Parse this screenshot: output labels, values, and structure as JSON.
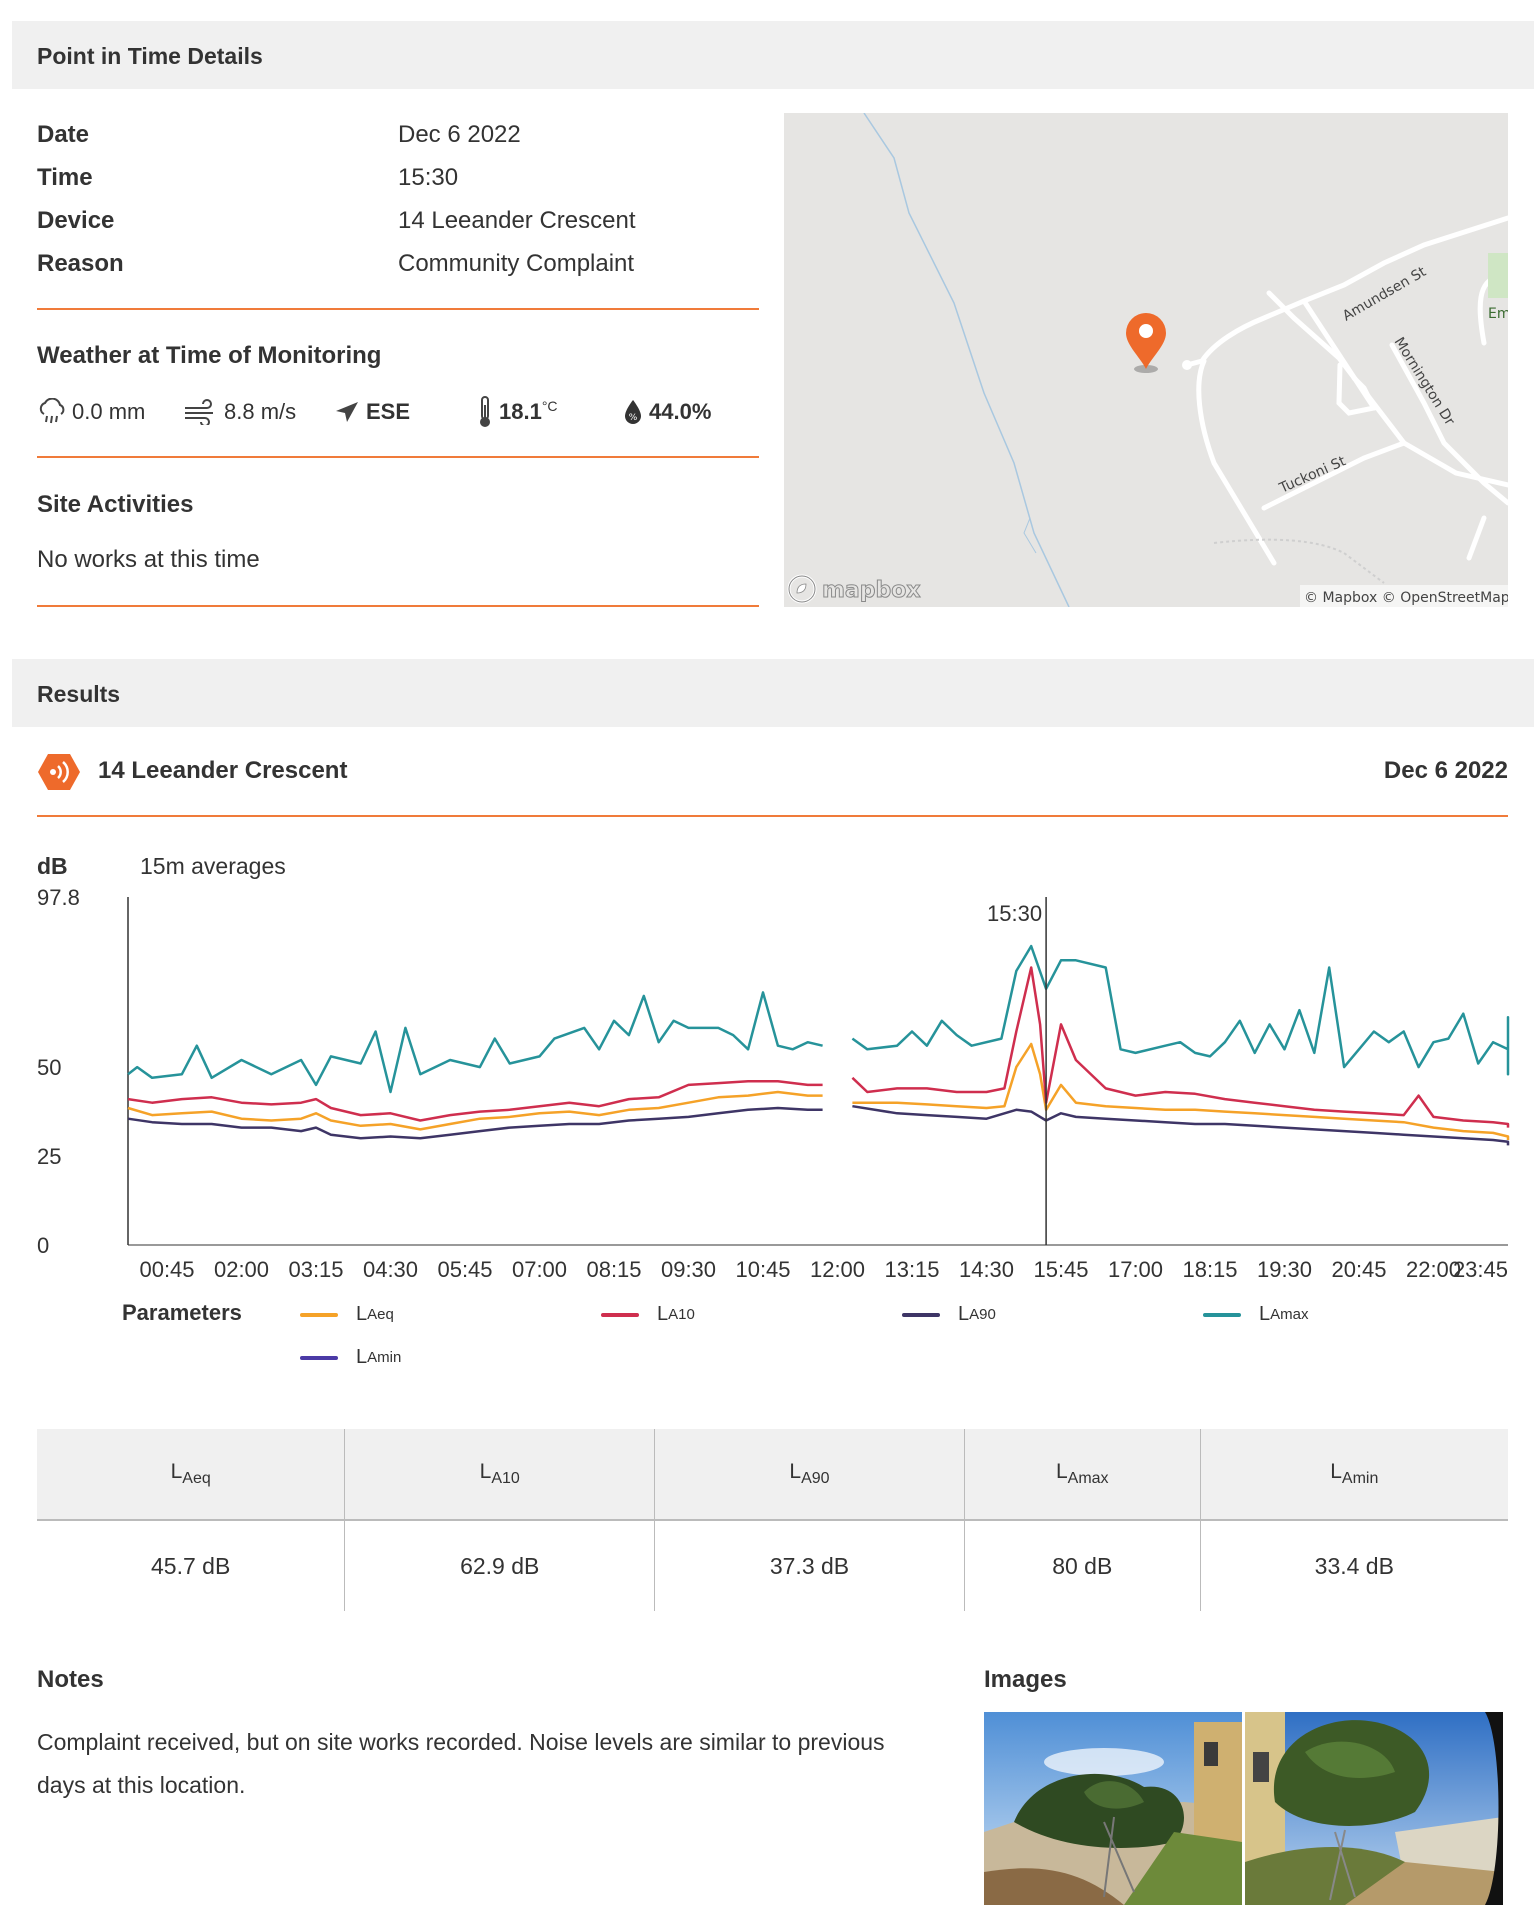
{
  "details": {
    "heading": "Point in Time Details",
    "rows": [
      {
        "label": "Date",
        "value": "Dec 6 2022"
      },
      {
        "label": "Time",
        "value": "15:30"
      },
      {
        "label": "Device",
        "value": "14 Leeander Crescent"
      },
      {
        "label": "Reason",
        "value": "Community Complaint"
      }
    ]
  },
  "weather": {
    "heading": "Weather at Time of Monitoring",
    "rain": "0.0 mm",
    "wind_speed": "8.8 m/s",
    "wind_dir": "ESE",
    "temp": "18.1",
    "temp_unit": "°C",
    "humidity": "44.0%"
  },
  "site": {
    "heading": "Site Activities",
    "text": "No works at this time"
  },
  "map": {
    "streets": [
      "Amundsen St",
      "Mornington Dr",
      "Tuckoni St",
      "Em"
    ],
    "logo": "mapbox",
    "attribution": "© Mapbox © OpenStreetMap"
  },
  "results": {
    "heading": "Results",
    "device": "14 Leeander Crescent",
    "date": "Dec 6 2022"
  },
  "chart_data": {
    "type": "line",
    "ylabel": "dB",
    "subtitle": "15m averages",
    "yticks": [
      0,
      25,
      50,
      97.8
    ],
    "ylim": [
      0,
      97.8
    ],
    "xticks": [
      "00:45",
      "02:00",
      "03:15",
      "04:30",
      "05:45",
      "07:00",
      "08:15",
      "09:30",
      "10:45",
      "12:00",
      "13:15",
      "14:30",
      "15:45",
      "17:00",
      "18:15",
      "19:30",
      "20:45",
      "22:00",
      "23:45"
    ],
    "marker": {
      "label": "15:30",
      "x_hour": 15.5
    },
    "legend_title": "Parameters",
    "gap_hours": [
      11.75,
      12.25
    ],
    "series": [
      {
        "name": "L",
        "sub": "Aeq",
        "color": "#f5a228",
        "points": [
          [
            0,
            38.5
          ],
          [
            0.5,
            36.5
          ],
          [
            1,
            37
          ],
          [
            1.5,
            37.5
          ],
          [
            2,
            35.5
          ],
          [
            2.5,
            35
          ],
          [
            3,
            35.5
          ],
          [
            3.25,
            37
          ],
          [
            3.5,
            35
          ],
          [
            4,
            33.5
          ],
          [
            4.5,
            34
          ],
          [
            5,
            32.5
          ],
          [
            5.5,
            34
          ],
          [
            6,
            35.5
          ],
          [
            6.5,
            36
          ],
          [
            7,
            37
          ],
          [
            7.5,
            37.5
          ],
          [
            8,
            36.5
          ],
          [
            8.5,
            38
          ],
          [
            9,
            38.5
          ],
          [
            9.5,
            40
          ],
          [
            10,
            41.5
          ],
          [
            10.5,
            42
          ],
          [
            11,
            43
          ],
          [
            11.5,
            42
          ],
          [
            11.75,
            42
          ],
          [
            12.25,
            40
          ],
          [
            13,
            40
          ],
          [
            13.5,
            39.5
          ],
          [
            14,
            39
          ],
          [
            14.5,
            38.5
          ],
          [
            14.8,
            39
          ],
          [
            15,
            50
          ],
          [
            15.25,
            56.5
          ],
          [
            15.4,
            48
          ],
          [
            15.5,
            38
          ],
          [
            15.75,
            45
          ],
          [
            16,
            40
          ],
          [
            16.5,
            39
          ],
          [
            17,
            38.5
          ],
          [
            17.5,
            38
          ],
          [
            18,
            38
          ],
          [
            18.5,
            37.5
          ],
          [
            19,
            37
          ],
          [
            19.5,
            36.5
          ],
          [
            20,
            36
          ],
          [
            20.5,
            35.5
          ],
          [
            21,
            35
          ],
          [
            21.5,
            34.5
          ],
          [
            22,
            33
          ],
          [
            22.5,
            32
          ],
          [
            23,
            31.5
          ],
          [
            23.5,
            30.5
          ],
          [
            24,
            29.5
          ]
        ]
      },
      {
        "name": "L",
        "sub": "A10",
        "color": "#cf2e4e",
        "points": [
          [
            0,
            41
          ],
          [
            0.5,
            40
          ],
          [
            1,
            41
          ],
          [
            1.5,
            41.5
          ],
          [
            2,
            40
          ],
          [
            2.5,
            39.5
          ],
          [
            3,
            40
          ],
          [
            3.25,
            41
          ],
          [
            3.5,
            38.5
          ],
          [
            4,
            36.5
          ],
          [
            4.5,
            37
          ],
          [
            5,
            35
          ],
          [
            5.5,
            36.5
          ],
          [
            6,
            37.5
          ],
          [
            6.5,
            38
          ],
          [
            7,
            39
          ],
          [
            7.5,
            40
          ],
          [
            8,
            39
          ],
          [
            8.5,
            41
          ],
          [
            9,
            41.5
          ],
          [
            9.5,
            45
          ],
          [
            10,
            45.5
          ],
          [
            10.5,
            46
          ],
          [
            11,
            46
          ],
          [
            11.5,
            45
          ],
          [
            11.75,
            45
          ],
          [
            12.25,
            47
          ],
          [
            12.5,
            43
          ],
          [
            13,
            44
          ],
          [
            13.5,
            44
          ],
          [
            14,
            43
          ],
          [
            14.5,
            43
          ],
          [
            14.8,
            44
          ],
          [
            15,
            60
          ],
          [
            15.25,
            78
          ],
          [
            15.4,
            62
          ],
          [
            15.5,
            40
          ],
          [
            15.75,
            62
          ],
          [
            16,
            52
          ],
          [
            16.5,
            44
          ],
          [
            17,
            42
          ],
          [
            17.5,
            43
          ],
          [
            18,
            42.5
          ],
          [
            18.5,
            41
          ],
          [
            19,
            40
          ],
          [
            19.5,
            39
          ],
          [
            20,
            38
          ],
          [
            20.5,
            37.5
          ],
          [
            21,
            37
          ],
          [
            21.5,
            36.5
          ],
          [
            21.75,
            42
          ],
          [
            22,
            36
          ],
          [
            22.5,
            35
          ],
          [
            23,
            34.5
          ],
          [
            23.5,
            34
          ],
          [
            24,
            33
          ]
        ]
      },
      {
        "name": "L",
        "sub": "A90",
        "color": "#3e3566",
        "points": [
          [
            0,
            35.5
          ],
          [
            0.5,
            34.5
          ],
          [
            1,
            34
          ],
          [
            1.5,
            34
          ],
          [
            2,
            33
          ],
          [
            2.5,
            33
          ],
          [
            3,
            32
          ],
          [
            3.25,
            33
          ],
          [
            3.5,
            31
          ],
          [
            4,
            30
          ],
          [
            4.5,
            30.5
          ],
          [
            5,
            30
          ],
          [
            5.5,
            31
          ],
          [
            6,
            32
          ],
          [
            6.5,
            33
          ],
          [
            7,
            33.5
          ],
          [
            7.5,
            34
          ],
          [
            8,
            34
          ],
          [
            8.5,
            35
          ],
          [
            9,
            35.5
          ],
          [
            9.5,
            36
          ],
          [
            10,
            37
          ],
          [
            10.5,
            38
          ],
          [
            11,
            38.5
          ],
          [
            11.5,
            38
          ],
          [
            11.75,
            38
          ],
          [
            12.25,
            39
          ],
          [
            13,
            37
          ],
          [
            13.5,
            36.5
          ],
          [
            14,
            36
          ],
          [
            14.5,
            35.5
          ],
          [
            15,
            38
          ],
          [
            15.25,
            37.5
          ],
          [
            15.5,
            35
          ],
          [
            15.75,
            37
          ],
          [
            16,
            36
          ],
          [
            16.5,
            35.5
          ],
          [
            17,
            35
          ],
          [
            17.5,
            34.5
          ],
          [
            18,
            34
          ],
          [
            18.5,
            34
          ],
          [
            19,
            33.5
          ],
          [
            19.5,
            33
          ],
          [
            20,
            32.5
          ],
          [
            20.5,
            32
          ],
          [
            21,
            31.5
          ],
          [
            21.5,
            31
          ],
          [
            22,
            30.5
          ],
          [
            22.5,
            30
          ],
          [
            23,
            29.5
          ],
          [
            23.5,
            29
          ],
          [
            24,
            28
          ]
        ]
      },
      {
        "name": "L",
        "sub": "Amax",
        "color": "#26939a",
        "points": [
          [
            0,
            48
          ],
          [
            0.25,
            50
          ],
          [
            0.5,
            47
          ],
          [
            1,
            48
          ],
          [
            1.25,
            56
          ],
          [
            1.5,
            47
          ],
          [
            2,
            52
          ],
          [
            2.5,
            48
          ],
          [
            3,
            52
          ],
          [
            3.25,
            45
          ],
          [
            3.5,
            53
          ],
          [
            4,
            51
          ],
          [
            4.25,
            60
          ],
          [
            4.5,
            43
          ],
          [
            4.75,
            61
          ],
          [
            5,
            48
          ],
          [
            5.5,
            52
          ],
          [
            6,
            50
          ],
          [
            6.25,
            58
          ],
          [
            6.5,
            51
          ],
          [
            7,
            53
          ],
          [
            7.25,
            58
          ],
          [
            7.75,
            61
          ],
          [
            8,
            55
          ],
          [
            8.25,
            63
          ],
          [
            8.5,
            59
          ],
          [
            8.75,
            70
          ],
          [
            9,
            57
          ],
          [
            9.25,
            63
          ],
          [
            9.5,
            61
          ],
          [
            10,
            61
          ],
          [
            10.25,
            59
          ],
          [
            10.5,
            55
          ],
          [
            10.75,
            71
          ],
          [
            11,
            56
          ],
          [
            11.25,
            55
          ],
          [
            11.5,
            57
          ],
          [
            11.75,
            56
          ],
          [
            12.25,
            58
          ],
          [
            12.5,
            55
          ],
          [
            13,
            56
          ],
          [
            13.25,
            60
          ],
          [
            13.5,
            56
          ],
          [
            13.75,
            63
          ],
          [
            14,
            59
          ],
          [
            14.25,
            56
          ],
          [
            14.75,
            58
          ],
          [
            15,
            77
          ],
          [
            15.25,
            84
          ],
          [
            15.5,
            72
          ],
          [
            15.75,
            80
          ],
          [
            16,
            80
          ],
          [
            16.5,
            78
          ],
          [
            16.75,
            55
          ],
          [
            17,
            54
          ],
          [
            17.5,
            56
          ],
          [
            17.75,
            57
          ],
          [
            18,
            54
          ],
          [
            18.25,
            53
          ],
          [
            18.5,
            57
          ],
          [
            18.75,
            63
          ],
          [
            19,
            54
          ],
          [
            19.25,
            62
          ],
          [
            19.5,
            55
          ],
          [
            19.75,
            66
          ],
          [
            20,
            54
          ],
          [
            20.25,
            78
          ],
          [
            20.5,
            50
          ],
          [
            20.75,
            55
          ],
          [
            21,
            60
          ],
          [
            21.25,
            57
          ],
          [
            21.5,
            60
          ],
          [
            21.75,
            50
          ],
          [
            22,
            57
          ],
          [
            22.25,
            58
          ],
          [
            22.5,
            65
          ],
          [
            22.75,
            51
          ],
          [
            23,
            57
          ],
          [
            23.25,
            55
          ],
          [
            23.5,
            64
          ],
          [
            23.75,
            48
          ],
          [
            24,
            54
          ]
        ]
      },
      {
        "name": "L",
        "sub": "Amin",
        "color": "#4b3aa6",
        "points": []
      }
    ]
  },
  "stats": {
    "headers": [
      {
        "main": "L",
        "sub": "Aeq"
      },
      {
        "main": "L",
        "sub": "A10"
      },
      {
        "main": "L",
        "sub": "A90"
      },
      {
        "main": "L",
        "sub": "Amax"
      },
      {
        "main": "L",
        "sub": "Amin"
      }
    ],
    "values": [
      "45.7 dB",
      "62.9 dB",
      "37.3 dB",
      "80 dB",
      "33.4 dB"
    ]
  },
  "notes": {
    "heading": "Notes",
    "text": "Complaint received, but on site works recorded. Noise levels are similar to previous days at this location."
  },
  "images": {
    "heading": "Images"
  }
}
